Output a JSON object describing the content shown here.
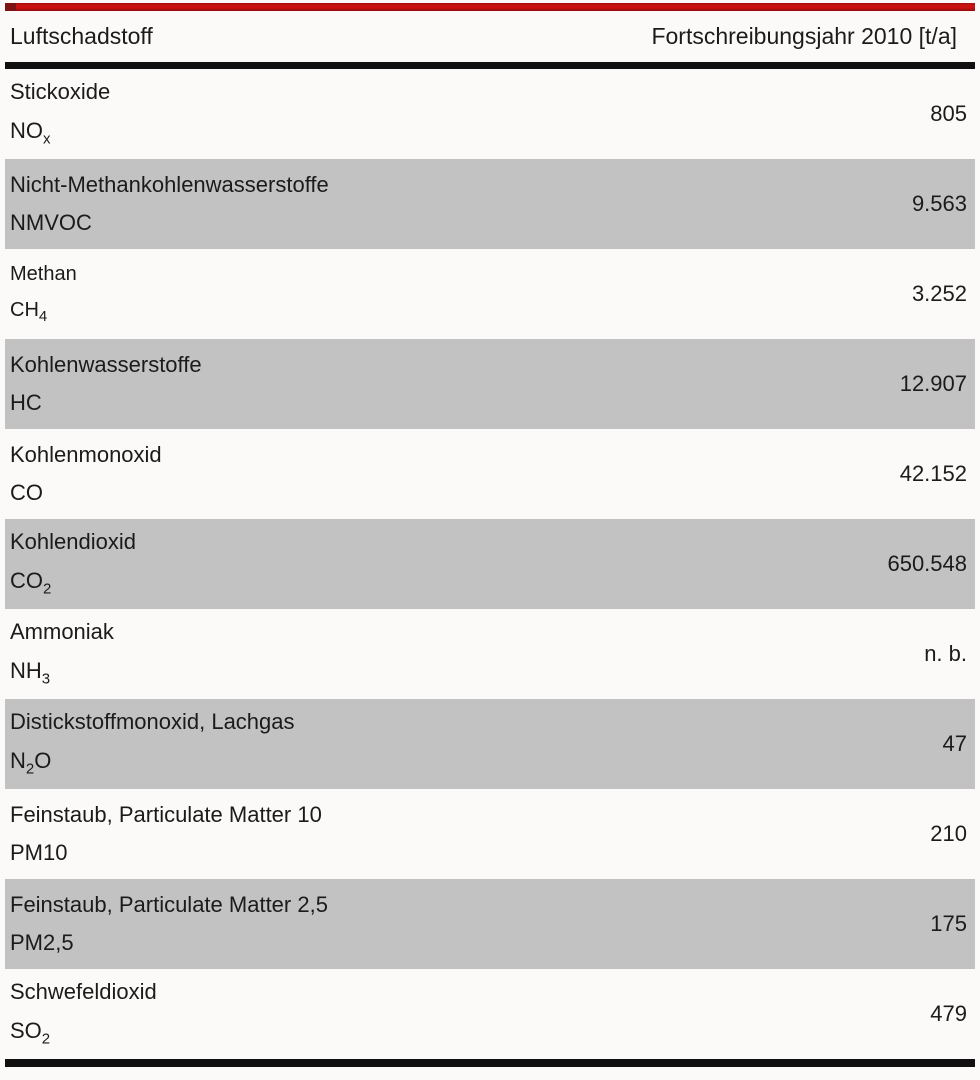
{
  "page": {
    "accent_red": "#c01010",
    "rule_black": "#101010",
    "row_alt_gray": "#c2c2c2"
  },
  "table": {
    "columns": [
      {
        "label": "Luftschadstoff",
        "align": "left"
      },
      {
        "label": "Fortschreibungsjahr 2010 [t/a]",
        "align": "right"
      }
    ],
    "rows": [
      {
        "name": "Stickoxide",
        "formula": [
          {
            "text": "NO"
          },
          {
            "sub": "x"
          }
        ],
        "value": "805",
        "small": false
      },
      {
        "name": "Nicht-Methankohlenwasserstoffe",
        "formula": [
          {
            "text": "NMVOC"
          }
        ],
        "value": "9.563",
        "small": false
      },
      {
        "name": "Methan",
        "formula": [
          {
            "text": "CH"
          },
          {
            "sub": "4"
          }
        ],
        "value": "3.252",
        "small": true
      },
      {
        "name": "Kohlenwasserstoffe",
        "formula": [
          {
            "text": "HC"
          }
        ],
        "value": "12.907",
        "small": false
      },
      {
        "name": "Kohlenmonoxid",
        "formula": [
          {
            "text": "CO"
          }
        ],
        "value": "42.152",
        "small": false
      },
      {
        "name": "Kohlendioxid",
        "formula": [
          {
            "text": "CO"
          },
          {
            "sub": "2"
          }
        ],
        "value": "650.548",
        "small": false
      },
      {
        "name": "Ammoniak",
        "formula": [
          {
            "text": "NH"
          },
          {
            "sub": "3"
          }
        ],
        "value": "n. b.",
        "small": false
      },
      {
        "name": "Distickstoffmonoxid, Lachgas",
        "formula": [
          {
            "text": "N"
          },
          {
            "sub": "2"
          },
          {
            "text": "O"
          }
        ],
        "value": "47",
        "small": false
      },
      {
        "name": "Feinstaub, Particulate Matter 10",
        "formula": [
          {
            "text": "PM10"
          }
        ],
        "value": "210",
        "small": false
      },
      {
        "name": "Feinstaub, Particulate Matter 2,5",
        "formula": [
          {
            "text": "PM2,5"
          }
        ],
        "value": "175",
        "small": false
      },
      {
        "name": "Schwefeldioxid",
        "formula": [
          {
            "text": "SO"
          },
          {
            "sub": "2"
          }
        ],
        "value": "479",
        "small": false
      }
    ]
  }
}
